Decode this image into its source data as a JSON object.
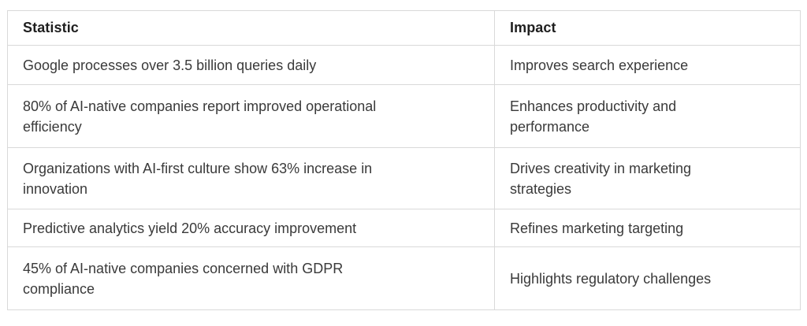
{
  "table": {
    "columns": [
      {
        "label": "Statistic"
      },
      {
        "label": "Impact"
      }
    ],
    "rows": [
      {
        "statistic": "Google processes over 3.5 billion queries daily",
        "impact": "Improves search experience"
      },
      {
        "statistic": "80% of AI-native companies report improved operational\nefficiency",
        "impact": "Enhances productivity and\nperformance"
      },
      {
        "statistic": "Organizations with AI-first culture show 63% increase in\ninnovation",
        "impact": "Drives creativity in marketing\nstrategies"
      },
      {
        "statistic": "Predictive analytics yield 20% accuracy improvement",
        "impact": "Refines marketing targeting"
      },
      {
        "statistic": "45% of AI-native companies concerned with GDPR\ncompliance",
        "impact": "Highlights regulatory challenges"
      }
    ],
    "colors": {
      "background": "#ffffff",
      "border": "#d9d9d9",
      "header_text": "#1f1f1f",
      "body_text": "#3a3a3a"
    }
  }
}
